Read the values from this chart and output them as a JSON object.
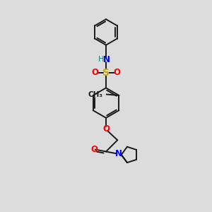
{
  "bg_color": "#dcdcdc",
  "bond_color": "#1a1a1a",
  "bond_width": 1.4,
  "atom_colors": {
    "N": "#0000ff",
    "O": "#ff0000",
    "S": "#ccaa00",
    "H": "#008888",
    "C": "#1a1a1a"
  },
  "figsize": [
    3.0,
    3.0
  ],
  "dpi": 100
}
